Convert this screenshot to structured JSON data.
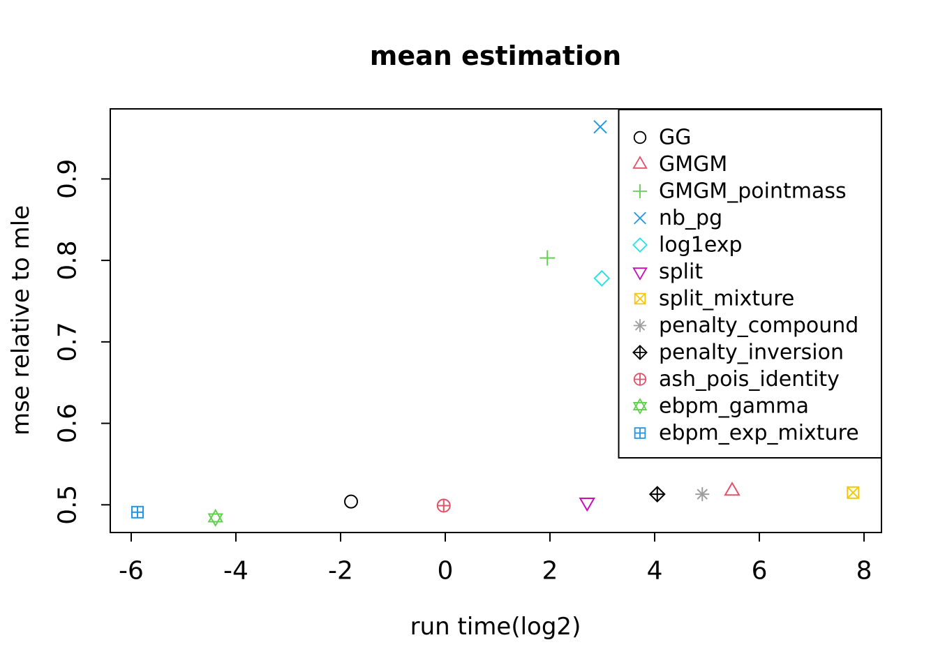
{
  "chart_data": {
    "type": "scatter",
    "title": "mean estimation",
    "xlabel": "run time(log2)",
    "ylabel": "mse relative to mle",
    "xlim": [
      -6.4,
      8.333
    ],
    "ylim": [
      0.466,
      0.986
    ],
    "x_ticks": [
      -6,
      -4,
      -2,
      0,
      2,
      4,
      6,
      8
    ],
    "x_tick_labels": [
      "-6",
      "-4",
      "-2",
      "0",
      "2",
      "4",
      "6",
      "8"
    ],
    "y_ticks": [
      0.5,
      0.6,
      0.7,
      0.8,
      0.9
    ],
    "y_tick_labels": [
      "0.5",
      "0.6",
      "0.7",
      "0.8",
      "0.9"
    ],
    "grid": false,
    "legend_position": "top-right",
    "frame_color": "#000000",
    "background_color": "#ffffff",
    "series": [
      {
        "name": "GG",
        "pch": 1,
        "symbol": "circle-open",
        "color": "#000000",
        "x": -1.8,
        "y": 0.504
      },
      {
        "name": "GMGM",
        "pch": 2,
        "symbol": "triangle-up-open",
        "color": "#DF536B",
        "x": 5.48,
        "y": 0.517
      },
      {
        "name": "GMGM_pointmass",
        "pch": 3,
        "symbol": "plus",
        "color": "#61D04F",
        "x": 1.95,
        "y": 0.803
      },
      {
        "name": "nb_pg",
        "pch": 4,
        "symbol": "x-cross",
        "color": "#2297E6",
        "x": 2.96,
        "y": 0.964
      },
      {
        "name": "log1exp",
        "pch": 5,
        "symbol": "diamond-open",
        "color": "#28E2E5",
        "x": 2.99,
        "y": 0.778
      },
      {
        "name": "split",
        "pch": 6,
        "symbol": "triangle-down-open",
        "color": "#CD0BBC",
        "x": 2.71,
        "y": 0.503
      },
      {
        "name": "split_mixture",
        "pch": 7,
        "symbol": "square-x",
        "color": "#F5C710",
        "x": 7.79,
        "y": 0.515
      },
      {
        "name": "penalty_compound",
        "pch": 8,
        "symbol": "asterisk",
        "color": "#9E9E9E",
        "x": 4.91,
        "y": 0.513
      },
      {
        "name": "penalty_inversion",
        "pch": 9,
        "symbol": "diamond-plus",
        "color": "#000000",
        "x": 4.05,
        "y": 0.513
      },
      {
        "name": "ash_pois_identity",
        "pch": 10,
        "symbol": "circle-plus",
        "color": "#DF536B",
        "x": -0.03,
        "y": 0.499
      },
      {
        "name": "ebpm_gamma",
        "pch": 11,
        "symbol": "star-of-david",
        "color": "#61D04F",
        "x": -4.39,
        "y": 0.484
      },
      {
        "name": "ebpm_exp_mixture",
        "pch": 12,
        "symbol": "square-plus",
        "color": "#2297E6",
        "x": -5.88,
        "y": 0.491
      }
    ]
  }
}
